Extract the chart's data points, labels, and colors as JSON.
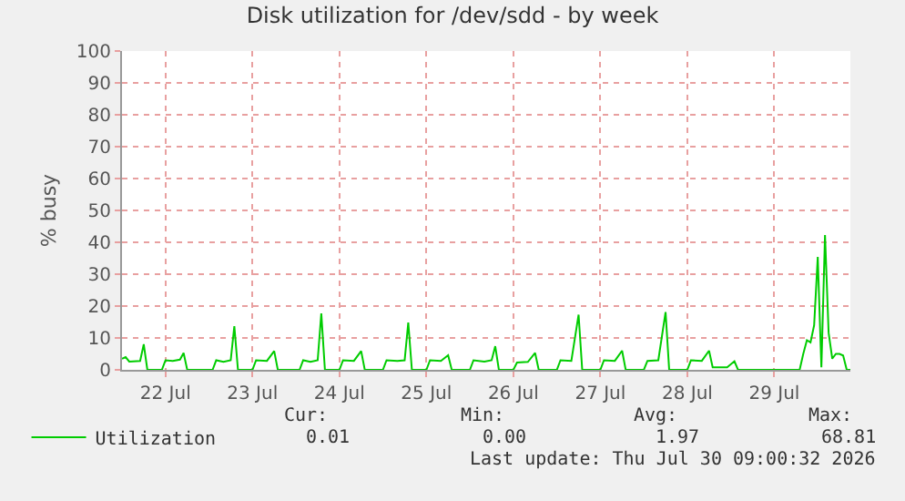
{
  "chart_data": {
    "type": "line",
    "title": "Disk utilization for /dev/sdd - by week",
    "ylabel": "% busy",
    "x": [
      "2026-07-22T00:00",
      "2026-07-22T01:00",
      "2026-07-22T02:00",
      "2026-07-22T05:00",
      "2026-07-22T06:00",
      "2026-07-22T07:00",
      "2026-07-22T11:00",
      "2026-07-22T12:00",
      "2026-07-22T14:00",
      "2026-07-22T16:00",
      "2026-07-22T17:00",
      "2026-07-22T18:00",
      "2026-07-23T01:00",
      "2026-07-23T02:00",
      "2026-07-23T04:00",
      "2026-07-23T06:00",
      "2026-07-23T07:00",
      "2026-07-23T08:00",
      "2026-07-23T12:00",
      "2026-07-23T13:00",
      "2026-07-23T16:00",
      "2026-07-23T18:00",
      "2026-07-23T19:00",
      "2026-07-24T01:00",
      "2026-07-24T02:00",
      "2026-07-24T04:00",
      "2026-07-24T06:00",
      "2026-07-24T07:00",
      "2026-07-24T08:00",
      "2026-07-24T12:00",
      "2026-07-24T13:00",
      "2026-07-24T16:00",
      "2026-07-24T18:00",
      "2026-07-24T19:00",
      "2026-07-25T00:00",
      "2026-07-25T01:00",
      "2026-07-25T04:00",
      "2026-07-25T06:00",
      "2026-07-25T07:00",
      "2026-07-25T08:00",
      "2026-07-25T12:00",
      "2026-07-25T13:00",
      "2026-07-25T16:00",
      "2026-07-25T18:00",
      "2026-07-25T19:00",
      "2026-07-26T00:00",
      "2026-07-26T01:00",
      "2026-07-26T04:00",
      "2026-07-26T06:00",
      "2026-07-26T07:00",
      "2026-07-26T08:00",
      "2026-07-26T12:00",
      "2026-07-26T13:00",
      "2026-07-26T16:00",
      "2026-07-26T18:00",
      "2026-07-26T19:00",
      "2026-07-27T00:00",
      "2026-07-27T01:00",
      "2026-07-27T04:00",
      "2026-07-27T06:00",
      "2026-07-27T07:00",
      "2026-07-27T12:00",
      "2026-07-27T13:00",
      "2026-07-27T16:00",
      "2026-07-27T18:00",
      "2026-07-27T19:00",
      "2026-07-28T00:00",
      "2026-07-28T01:00",
      "2026-07-28T04:00",
      "2026-07-28T06:00",
      "2026-07-28T07:00",
      "2026-07-28T12:00",
      "2026-07-28T13:00",
      "2026-07-28T16:00",
      "2026-07-28T18:00",
      "2026-07-28T19:00",
      "2026-07-28T23:00",
      "2026-07-29T01:00",
      "2026-07-29T02:00",
      "2026-07-29T19:00",
      "2026-07-29T20:00",
      "2026-07-29T21:00",
      "2026-07-29T22:00",
      "2026-07-29T23:00",
      "2026-07-30T00:00",
      "2026-07-30T01:00",
      "2026-07-30T02:00",
      "2026-07-30T03:00",
      "2026-07-30T04:00",
      "2026-07-30T05:00",
      "2026-07-30T06:00",
      "2026-07-30T07:00",
      "2026-07-30T08:00",
      "2026-07-30T09:00"
    ],
    "series": [
      {
        "name": "Utilization",
        "color": "#00cc00",
        "values": [
          3.5,
          4,
          2.6,
          2.8,
          8,
          0,
          0,
          3,
          2.8,
          3.2,
          5.3,
          0,
          0,
          3,
          2.5,
          3,
          13.7,
          0,
          0,
          3,
          2.8,
          5.9,
          0,
          0,
          3,
          2.5,
          3,
          17.7,
          0,
          0,
          3,
          2.8,
          5.9,
          0,
          0,
          3,
          2.8,
          3,
          14.8,
          0,
          0,
          3,
          2.8,
          4.6,
          0,
          0,
          3,
          2.6,
          3,
          7.4,
          0,
          0,
          2.3,
          2.5,
          5.3,
          0,
          0,
          3,
          2.8,
          17.3,
          0,
          0,
          3,
          2.8,
          6,
          0,
          0,
          2.8,
          3,
          18.1,
          0,
          0,
          3,
          2.8,
          6,
          0.8,
          0.8,
          2.7,
          0,
          0,
          5,
          9.3,
          8.6,
          14,
          35.4,
          0.8,
          42.3,
          11.6,
          3.5,
          5,
          5,
          4.5,
          0,
          0
        ]
      }
    ],
    "xlim": [
      "2026-07-22T00:00",
      "2026-07-30T09:00"
    ],
    "xticks": [
      {
        "value": "2026-07-22T12:00",
        "label": "22 Jul"
      },
      {
        "value": "2026-07-23T12:00",
        "label": "23 Jul"
      },
      {
        "value": "2026-07-24T12:00",
        "label": "24 Jul"
      },
      {
        "value": "2026-07-25T12:00",
        "label": "25 Jul"
      },
      {
        "value": "2026-07-26T12:00",
        "label": "26 Jul"
      },
      {
        "value": "2026-07-27T12:00",
        "label": "27 Jul"
      },
      {
        "value": "2026-07-28T12:00",
        "label": "28 Jul"
      },
      {
        "value": "2026-07-29T12:00",
        "label": "29 Jul"
      }
    ],
    "ylim": [
      0,
      100
    ],
    "yticks": [
      0,
      10,
      20,
      30,
      40,
      50,
      60,
      70,
      80,
      90,
      100
    ],
    "grid": true,
    "legend": "bottom left",
    "marker": "none",
    "line_style": "solid",
    "annotations": [
      "Cur:",
      "Min:",
      "Avg:",
      "Max:",
      "0.01",
      "0.00",
      "1.97",
      "68.81",
      "Last update: Thu Jul 30 09:00:32 2026"
    ]
  }
}
